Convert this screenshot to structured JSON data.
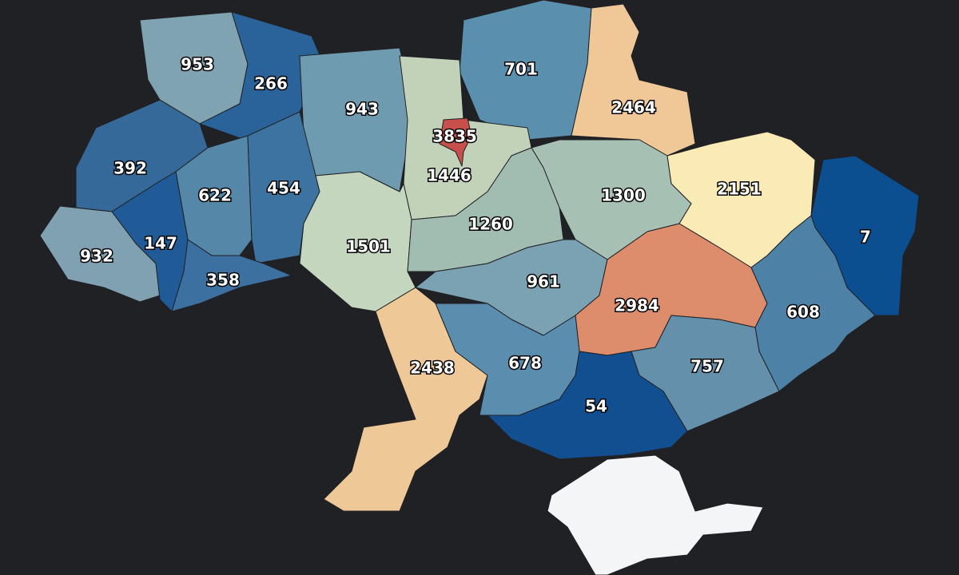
{
  "regions": [
    {
      "value": 953,
      "color": "#7fa3b1"
    },
    {
      "value": 266,
      "color": "#2a6399"
    },
    {
      "value": 943,
      "color": "#6f9bb0"
    },
    {
      "value": 701,
      "color": "#5a8fae"
    },
    {
      "value": 2464,
      "color": "#f0c898"
    },
    {
      "value": 1446,
      "color": "#c2d2b8"
    },
    {
      "value": 392,
      "color": "#35699a"
    },
    {
      "value": 622,
      "color": "#5487a8"
    },
    {
      "value": 454,
      "color": "#3d73a0"
    },
    {
      "value": 1300,
      "color": "#a7c0b4"
    },
    {
      "value": 2151,
      "color": "#faeab5"
    },
    {
      "value": 7,
      "color": "#0c4f91"
    },
    {
      "value": 932,
      "color": "#7fa1b1"
    },
    {
      "value": 147,
      "color": "#215b97"
    },
    {
      "value": 358,
      "color": "#3b70a0"
    },
    {
      "value": 1501,
      "color": "#c4d6bd"
    },
    {
      "value": 1260,
      "color": "#a1bdb2"
    },
    {
      "value": 961,
      "color": "#7aa2b3"
    },
    {
      "value": 2984,
      "color": "#dd8c6c"
    },
    {
      "value": 608,
      "color": "#4d82a6"
    },
    {
      "value": 2438,
      "color": "#efc898"
    },
    {
      "value": 678,
      "color": "#5b8daf"
    },
    {
      "value": 757,
      "color": "#6590ab"
    },
    {
      "value": 54,
      "color": "#124f90"
    },
    {
      "value": 3835,
      "color": "#c8504a"
    }
  ]
}
